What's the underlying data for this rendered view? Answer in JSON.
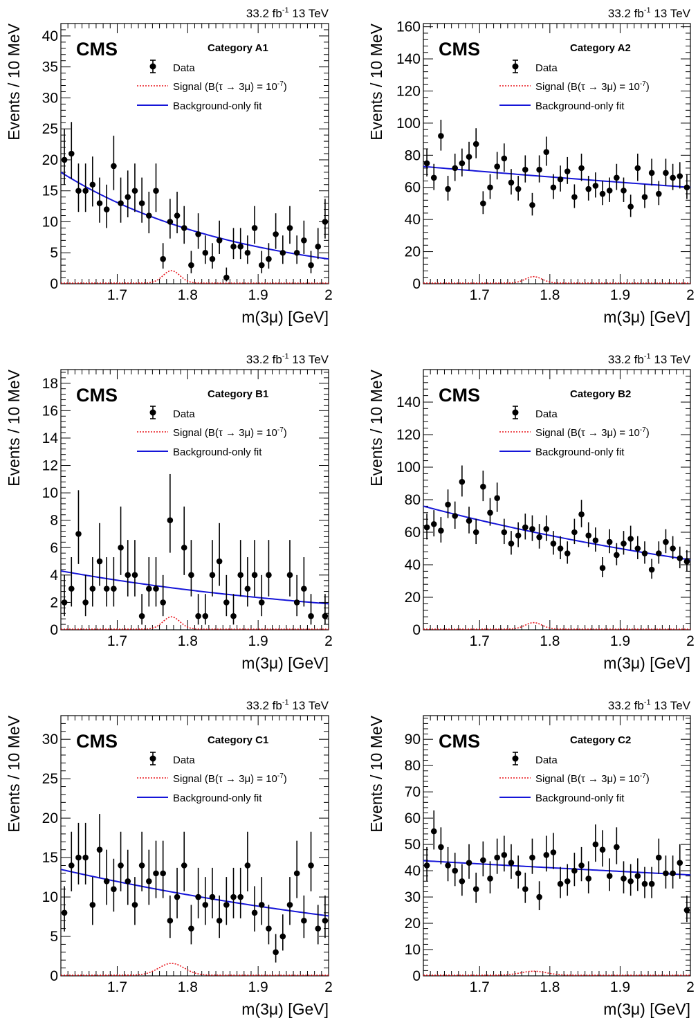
{
  "chart_data": [
    {
      "type": "scatter",
      "panel": "A1",
      "energy_label": "33.2 fb-1 13 TeV",
      "lumi_text": "33.2 fb",
      "lumi_exp": "-1",
      "energy_text": "13 TeV",
      "experiment": "CMS",
      "category": "Category A1",
      "xlabel": "m(3μ) [GeV]",
      "ylabel": "Events / 10 MeV",
      "xlim": [
        1.62,
        2.0
      ],
      "ylim": [
        0,
        42
      ],
      "xticks": [
        "1.7",
        "1.8",
        "1.9",
        "2"
      ],
      "yticks": [
        "0",
        "5",
        "10",
        "15",
        "20",
        "25",
        "30",
        "35",
        "40"
      ],
      "ytick_values": [
        0,
        5,
        10,
        15,
        20,
        25,
        30,
        35,
        40
      ],
      "legend": {
        "data": "Data",
        "signal_prefix": "Signal (B(τ → 3μ) = 10",
        "signal_exp": "-7",
        "signal_suffix": ")",
        "background": "Background-only fit"
      },
      "series": [
        {
          "name": "Data",
          "x": [
            1.625,
            1.635,
            1.645,
            1.655,
            1.665,
            1.675,
            1.685,
            1.695,
            1.705,
            1.715,
            1.725,
            1.735,
            1.745,
            1.755,
            1.765,
            1.775,
            1.785,
            1.795,
            1.805,
            1.815,
            1.825,
            1.835,
            1.845,
            1.855,
            1.865,
            1.875,
            1.885,
            1.895,
            1.905,
            1.915,
            1.925,
            1.935,
            1.945,
            1.955,
            1.965,
            1.975,
            1.985,
            1.995
          ],
          "y": [
            20,
            21,
            15,
            15,
            16,
            13,
            12,
            19,
            13,
            14,
            15,
            13,
            11,
            15,
            4,
            10,
            11,
            9,
            3,
            8,
            5,
            4,
            7,
            1,
            6,
            6,
            5,
            9,
            3,
            4,
            8,
            5,
            9,
            5,
            7,
            3,
            6,
            10
          ]
        },
        {
          "name": "Signal (B(τ → 3μ) = 10-7)",
          "mean": 1.777,
          "sigma": 0.012,
          "peak": 2.0
        },
        {
          "name": "Background-only fit",
          "model": "exponential",
          "y_at_xmin": 18.0,
          "y_at_xmax": 4.0
        }
      ]
    },
    {
      "type": "scatter",
      "panel": "A2",
      "energy_label": "33.2 fb-1 13 TeV",
      "lumi_text": "33.2 fb",
      "lumi_exp": "-1",
      "energy_text": "13 TeV",
      "experiment": "CMS",
      "category": "Category A2",
      "xlabel": "m(3μ) [GeV]",
      "ylabel": "Events / 10 MeV",
      "xlim": [
        1.62,
        2.0
      ],
      "ylim": [
        0,
        162
      ],
      "xticks": [
        "1.7",
        "1.8",
        "1.9",
        "2"
      ],
      "yticks": [
        "0",
        "20",
        "40",
        "60",
        "80",
        "100",
        "120",
        "140",
        "160"
      ],
      "ytick_values": [
        0,
        20,
        40,
        60,
        80,
        100,
        120,
        140,
        160
      ],
      "legend": {
        "data": "Data",
        "signal_prefix": "Signal (B(τ → 3μ) = 10",
        "signal_exp": "-7",
        "signal_suffix": ")",
        "background": "Background-only fit"
      },
      "series": [
        {
          "name": "Data",
          "x": [
            1.625,
            1.635,
            1.645,
            1.655,
            1.665,
            1.675,
            1.685,
            1.695,
            1.705,
            1.715,
            1.725,
            1.735,
            1.745,
            1.755,
            1.765,
            1.775,
            1.785,
            1.795,
            1.805,
            1.815,
            1.825,
            1.835,
            1.845,
            1.855,
            1.865,
            1.875,
            1.885,
            1.895,
            1.905,
            1.915,
            1.925,
            1.935,
            1.945,
            1.955,
            1.965,
            1.975,
            1.985,
            1.995
          ],
          "y": [
            75,
            66,
            92,
            59,
            72,
            75,
            79,
            87,
            50,
            60,
            73,
            78,
            63,
            59,
            71,
            49,
            71,
            82,
            60,
            65,
            70,
            54,
            72,
            59,
            61,
            56,
            58,
            66,
            58,
            48,
            72,
            54,
            69,
            56,
            69,
            66,
            67,
            60
          ]
        },
        {
          "name": "Signal (B(τ → 3μ) = 10-7)",
          "mean": 1.777,
          "sigma": 0.012,
          "peak": 4.0
        },
        {
          "name": "Background-only fit",
          "model": "exponential",
          "y_at_xmin": 73.0,
          "y_at_xmax": 60.0
        }
      ]
    },
    {
      "type": "scatter",
      "panel": "B1",
      "energy_label": "33.2 fb-1 13 TeV",
      "lumi_text": "33.2 fb",
      "lumi_exp": "-1",
      "energy_text": "13 TeV",
      "experiment": "CMS",
      "category": "Category B1",
      "xlabel": "m(3μ) [GeV]",
      "ylabel": "Events / 10 MeV",
      "xlim": [
        1.62,
        2.0
      ],
      "ylim": [
        0,
        19
      ],
      "xticks": [
        "1.7",
        "1.8",
        "1.9",
        "2"
      ],
      "yticks": [
        "0",
        "2",
        "4",
        "6",
        "8",
        "10",
        "12",
        "14",
        "16",
        "18"
      ],
      "ytick_values": [
        0,
        2,
        4,
        6,
        8,
        10,
        12,
        14,
        16,
        18
      ],
      "legend": {
        "data": "Data",
        "signal_prefix": "Signal (B(τ → 3μ) = 10",
        "signal_exp": "-7",
        "signal_suffix": ")",
        "background": "Background-only fit"
      },
      "series": [
        {
          "name": "Data",
          "x": [
            1.625,
            1.635,
            1.645,
            1.655,
            1.665,
            1.675,
            1.685,
            1.695,
            1.705,
            1.715,
            1.725,
            1.735,
            1.745,
            1.755,
            1.765,
            1.775,
            1.795,
            1.805,
            1.815,
            1.825,
            1.835,
            1.845,
            1.855,
            1.865,
            1.875,
            1.885,
            1.895,
            1.905,
            1.915,
            1.945,
            1.955,
            1.965,
            1.975,
            1.995
          ],
          "y": [
            2,
            3,
            7,
            2,
            3,
            5,
            3,
            3,
            6,
            4,
            4,
            1,
            3,
            3,
            2,
            8,
            6,
            4,
            1,
            1,
            4,
            5,
            2,
            1,
            4,
            3,
            4,
            2,
            4,
            4,
            2,
            3,
            1,
            1
          ]
        },
        {
          "name": "Signal (B(τ → 3μ) = 10-7)",
          "mean": 1.777,
          "sigma": 0.012,
          "peak": 0.9
        },
        {
          "name": "Background-only fit",
          "model": "exponential",
          "y_at_xmin": 4.3,
          "y_at_xmax": 1.9
        }
      ]
    },
    {
      "type": "scatter",
      "panel": "B2",
      "energy_label": "33.2 fb-1 13 TeV",
      "lumi_text": "33.2 fb",
      "lumi_exp": "-1",
      "energy_text": "13 TeV",
      "experiment": "CMS",
      "category": "Category B2",
      "xlabel": "m(3μ) [GeV]",
      "ylabel": "Events / 10 MeV",
      "xlim": [
        1.62,
        2.0
      ],
      "ylim": [
        0,
        160
      ],
      "xticks": [
        "1.7",
        "1.8",
        "1.9",
        "2"
      ],
      "yticks": [
        "0",
        "20",
        "40",
        "60",
        "80",
        "100",
        "120",
        "140"
      ],
      "ytick_values": [
        0,
        20,
        40,
        60,
        80,
        100,
        120,
        140
      ],
      "legend": {
        "data": "Data",
        "signal_prefix": "Signal (B(τ → 3μ) = 10",
        "signal_exp": "-7",
        "signal_suffix": ")",
        "background": "Background-only fit"
      },
      "series": [
        {
          "name": "Data",
          "x": [
            1.625,
            1.635,
            1.645,
            1.655,
            1.665,
            1.675,
            1.685,
            1.695,
            1.705,
            1.715,
            1.725,
            1.735,
            1.745,
            1.755,
            1.765,
            1.775,
            1.785,
            1.795,
            1.805,
            1.815,
            1.825,
            1.835,
            1.845,
            1.855,
            1.865,
            1.875,
            1.885,
            1.895,
            1.905,
            1.915,
            1.925,
            1.935,
            1.945,
            1.955,
            1.965,
            1.975,
            1.985,
            1.995
          ],
          "y": [
            63,
            65,
            61,
            77,
            70,
            91,
            67,
            60,
            88,
            72,
            81,
            60,
            53,
            58,
            63,
            62,
            57,
            62,
            53,
            50,
            47,
            60,
            71,
            58,
            55,
            38,
            54,
            46,
            53,
            56,
            50,
            47,
            37,
            47,
            54,
            50,
            44,
            42
          ]
        },
        {
          "name": "Signal (B(τ → 3μ) = 10-7)",
          "mean": 1.777,
          "sigma": 0.012,
          "peak": 4.0
        },
        {
          "name": "Background-only fit",
          "model": "exponential",
          "y_at_xmin": 76.0,
          "y_at_xmax": 43.0
        }
      ]
    },
    {
      "type": "scatter",
      "panel": "C1",
      "energy_label": "33.2 fb-1 13 TeV",
      "lumi_text": "33.2 fb",
      "lumi_exp": "-1",
      "energy_text": "13 TeV",
      "experiment": "CMS",
      "category": "Category C1",
      "xlabel": "m(3μ) [GeV]",
      "ylabel": "Events / 10 MeV",
      "xlim": [
        1.62,
        2.0
      ],
      "ylim": [
        0,
        33
      ],
      "xticks": [
        "1.7",
        "1.8",
        "1.9",
        "2"
      ],
      "yticks": [
        "0",
        "5",
        "10",
        "15",
        "20",
        "25",
        "30"
      ],
      "ytick_values": [
        0,
        5,
        10,
        15,
        20,
        25,
        30
      ],
      "legend": {
        "data": "Data",
        "signal_prefix": "Signal (B(τ → 3μ) = 10",
        "signal_exp": "-7",
        "signal_suffix": ")",
        "background": "Background-only fit"
      },
      "series": [
        {
          "name": "Data",
          "x": [
            1.625,
            1.635,
            1.645,
            1.655,
            1.665,
            1.675,
            1.685,
            1.695,
            1.705,
            1.715,
            1.725,
            1.735,
            1.745,
            1.755,
            1.765,
            1.775,
            1.785,
            1.795,
            1.805,
            1.815,
            1.825,
            1.835,
            1.845,
            1.855,
            1.865,
            1.875,
            1.885,
            1.895,
            1.905,
            1.915,
            1.925,
            1.935,
            1.945,
            1.955,
            1.965,
            1.975,
            1.985,
            1.995
          ],
          "y": [
            8,
            14,
            15,
            15,
            9,
            16,
            12,
            11,
            14,
            12,
            9,
            14,
            12,
            13,
            13,
            7,
            10,
            14,
            6,
            10,
            9,
            10,
            7,
            9,
            10,
            10,
            14,
            8,
            9,
            6,
            3,
            5,
            9,
            13,
            7,
            14,
            6,
            7
          ]
        },
        {
          "name": "Signal (B(τ → 3μ) = 10-7)",
          "mean": 1.777,
          "sigma": 0.018,
          "peak": 1.5
        },
        {
          "name": "Background-only fit",
          "model": "exponential",
          "y_at_xmin": 13.5,
          "y_at_xmax": 7.6
        }
      ]
    },
    {
      "type": "scatter",
      "panel": "C2",
      "energy_label": "33.2 fb-1 13 TeV",
      "lumi_text": "33.2 fb",
      "lumi_exp": "-1",
      "energy_text": "13 TeV",
      "experiment": "CMS",
      "category": "Category C2",
      "xlabel": "m(3μ) [GeV]",
      "ylabel": "Events / 10 MeV",
      "xlim": [
        1.62,
        2.0
      ],
      "ylim": [
        0,
        99
      ],
      "xticks": [
        "1.7",
        "1.8",
        "1.9",
        "2"
      ],
      "yticks": [
        "0",
        "10",
        "20",
        "30",
        "40",
        "50",
        "60",
        "70",
        "80",
        "90"
      ],
      "ytick_values": [
        0,
        10,
        20,
        30,
        40,
        50,
        60,
        70,
        80,
        90
      ],
      "legend": {
        "data": "Data",
        "signal_prefix": "Signal (B(τ → 3μ) = 10",
        "signal_exp": "-7",
        "signal_suffix": ")",
        "background": "Background-only fit"
      },
      "series": [
        {
          "name": "Data",
          "x": [
            1.625,
            1.635,
            1.645,
            1.655,
            1.665,
            1.675,
            1.685,
            1.695,
            1.705,
            1.715,
            1.725,
            1.735,
            1.745,
            1.755,
            1.765,
            1.775,
            1.785,
            1.795,
            1.805,
            1.815,
            1.825,
            1.835,
            1.845,
            1.855,
            1.865,
            1.875,
            1.885,
            1.895,
            1.905,
            1.915,
            1.925,
            1.935,
            1.945,
            1.955,
            1.965,
            1.975,
            1.985,
            1.995
          ],
          "y": [
            42,
            55,
            49,
            42,
            40,
            36,
            43,
            33,
            44,
            37,
            45,
            46,
            43,
            39,
            33,
            45,
            30,
            46,
            47,
            35,
            36,
            40,
            42,
            37,
            50,
            48,
            38,
            49,
            37,
            36,
            38,
            35,
            35,
            45,
            39,
            39,
            43,
            25
          ]
        },
        {
          "name": "Signal (B(τ → 3μ) = 10-7)",
          "mean": 1.777,
          "sigma": 0.018,
          "peak": 1.5
        },
        {
          "name": "Background-only fit",
          "model": "exponential",
          "y_at_xmin": 43.8,
          "y_at_xmax": 38.4
        }
      ]
    }
  ]
}
